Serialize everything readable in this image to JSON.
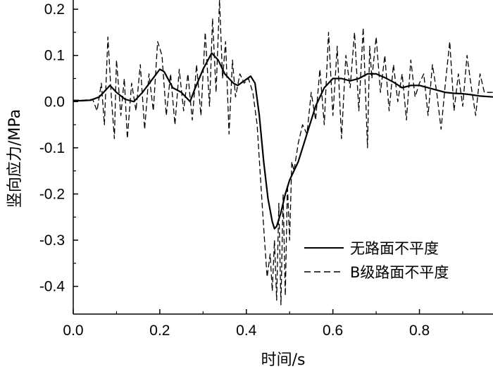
{
  "chart_data": {
    "type": "line",
    "xlabel": "时间/s",
    "ylabel": "竖向应力/MPa",
    "xlim": [
      0.0,
      0.97
    ],
    "ylim": [
      -0.46,
      0.22
    ],
    "x_ticks": [
      0.0,
      0.2,
      0.4,
      0.6,
      0.8
    ],
    "x_tick_labels": [
      "0.0",
      "0.2",
      "0.4",
      "0.6",
      "0.8"
    ],
    "y_ticks": [
      0.2,
      0.1,
      0.0,
      -0.1,
      -0.2,
      -0.3,
      -0.4
    ],
    "y_tick_labels": [
      "0.2",
      "0.1",
      "0.0",
      "-0.1",
      "-0.2",
      "-0.3",
      "-0.4"
    ],
    "legend_position": "bottom-right",
    "grid": false,
    "series": [
      {
        "name": "无路面不平度",
        "style": "solid",
        "color": "#000000",
        "x": [
          0.0,
          0.02,
          0.04,
          0.06,
          0.07,
          0.085,
          0.1,
          0.12,
          0.14,
          0.16,
          0.18,
          0.2,
          0.21,
          0.23,
          0.25,
          0.27,
          0.28,
          0.3,
          0.32,
          0.335,
          0.35,
          0.37,
          0.38,
          0.395,
          0.41,
          0.42,
          0.43,
          0.44,
          0.45,
          0.46,
          0.465,
          0.47,
          0.48,
          0.49,
          0.5,
          0.52,
          0.54,
          0.56,
          0.58,
          0.6,
          0.62,
          0.64,
          0.66,
          0.68,
          0.7,
          0.72,
          0.74,
          0.76,
          0.78,
          0.8,
          0.82,
          0.84,
          0.86,
          0.88,
          0.9,
          0.92,
          0.94,
          0.97
        ],
        "y": [
          0.002,
          0.002,
          0.003,
          0.01,
          0.02,
          0.035,
          0.02,
          0.005,
          0.0,
          0.02,
          0.045,
          0.07,
          0.065,
          0.03,
          0.02,
          0.0,
          0.025,
          0.07,
          0.105,
          0.09,
          0.06,
          0.04,
          0.035,
          0.045,
          0.055,
          0.04,
          -0.03,
          -0.13,
          -0.21,
          -0.26,
          -0.275,
          -0.27,
          -0.24,
          -0.2,
          -0.17,
          -0.13,
          -0.07,
          -0.01,
          0.03,
          0.05,
          0.05,
          0.045,
          0.05,
          0.06,
          0.06,
          0.052,
          0.042,
          0.03,
          0.035,
          0.035,
          0.03,
          0.025,
          0.02,
          0.018,
          0.017,
          0.015,
          0.012,
          0.01
        ]
      },
      {
        "name": "B级路面不平度",
        "style": "dashed",
        "color": "#000000",
        "x": [
          0.0,
          0.025,
          0.045,
          0.055,
          0.065,
          0.072,
          0.08,
          0.088,
          0.095,
          0.1,
          0.11,
          0.118,
          0.125,
          0.135,
          0.145,
          0.155,
          0.165,
          0.175,
          0.185,
          0.195,
          0.205,
          0.215,
          0.225,
          0.235,
          0.245,
          0.255,
          0.265,
          0.275,
          0.285,
          0.295,
          0.305,
          0.315,
          0.322,
          0.33,
          0.338,
          0.345,
          0.352,
          0.36,
          0.368,
          0.375,
          0.385,
          0.395,
          0.405,
          0.415,
          0.425,
          0.435,
          0.442,
          0.448,
          0.455,
          0.46,
          0.465,
          0.47,
          0.475,
          0.48,
          0.485,
          0.49,
          0.495,
          0.5,
          0.505,
          0.51,
          0.52,
          0.53,
          0.54,
          0.55,
          0.56,
          0.57,
          0.58,
          0.59,
          0.6,
          0.61,
          0.62,
          0.63,
          0.64,
          0.65,
          0.66,
          0.67,
          0.68,
          0.685,
          0.69,
          0.7,
          0.71,
          0.72,
          0.73,
          0.74,
          0.75,
          0.76,
          0.77,
          0.78,
          0.79,
          0.8,
          0.81,
          0.82,
          0.83,
          0.84,
          0.85,
          0.86,
          0.87,
          0.88,
          0.89,
          0.9,
          0.91,
          0.92,
          0.93,
          0.94,
          0.95,
          0.97
        ],
        "y": [
          0.003,
          0.003,
          0.005,
          -0.02,
          0.04,
          -0.05,
          0.14,
          0.01,
          -0.08,
          0.09,
          -0.03,
          0.05,
          -0.08,
          0.04,
          -0.02,
          0.08,
          -0.06,
          0.06,
          -0.02,
          0.13,
          0.1,
          -0.03,
          0.06,
          -0.05,
          0.07,
          -0.02,
          0.06,
          -0.04,
          0.08,
          -0.03,
          0.15,
          -0.01,
          0.18,
          0.02,
          0.22,
          0.05,
          0.13,
          -0.07,
          0.09,
          0.01,
          0.06,
          0.04,
          0.05,
          0.02,
          -0.05,
          -0.2,
          -0.3,
          -0.38,
          -0.33,
          -0.41,
          -0.3,
          -0.43,
          -0.22,
          -0.44,
          -0.2,
          -0.42,
          -0.18,
          -0.3,
          -0.13,
          -0.15,
          -0.09,
          -0.05,
          -0.07,
          0.02,
          -0.04,
          0.07,
          -0.05,
          0.15,
          -0.03,
          0.12,
          -0.08,
          0.1,
          0.03,
          0.15,
          -0.02,
          0.16,
          -0.1,
          0.12,
          0.05,
          0.14,
          0.02,
          0.1,
          -0.02,
          0.08,
          0.0,
          0.06,
          -0.04,
          0.09,
          0.01,
          0.04,
          0.06,
          -0.03,
          0.08,
          0.02,
          -0.06,
          0.04,
          0.13,
          -0.02,
          0.06,
          -0.01,
          0.1,
          0.03,
          -0.03,
          0.06,
          0.02,
          0.02
        ]
      }
    ]
  }
}
